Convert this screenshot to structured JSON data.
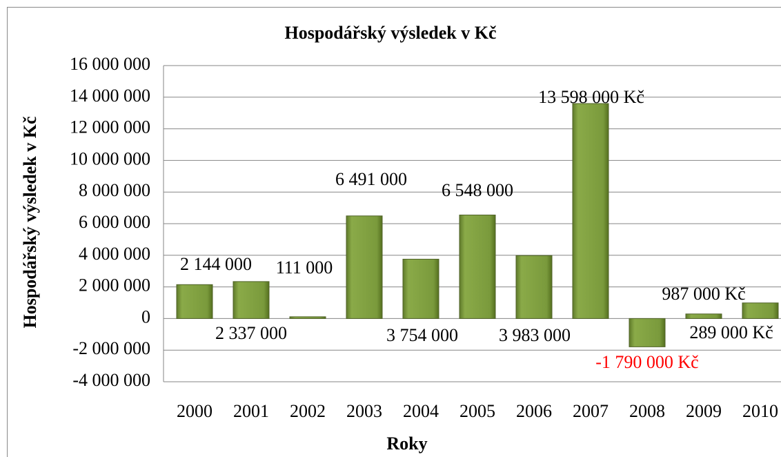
{
  "chart_data": {
    "type": "bar",
    "title": "Hospodářský výsledek v Kč",
    "x_label": "Roky",
    "y_label": "Hospodářský výsledek v Kč",
    "categories": [
      "2000",
      "2001",
      "2002",
      "2003",
      "2004",
      "2005",
      "2006",
      "2007",
      "2008",
      "2009",
      "2010"
    ],
    "values": [
      2144000,
      2337000,
      111000,
      6491000,
      3754000,
      6548000,
      3983000,
      13598000,
      -1790000,
      289000,
      987000
    ],
    "value_labels": [
      "2 144 000",
      "2 337 000",
      "111 000",
      "6 491 000",
      "3 754 000",
      "6 548 000",
      "3 983 000",
      "13 598 000 Kč",
      "-1 790 000 Kč",
      "289 000 Kč",
      "987 000 Kč"
    ],
    "color": "#77933c",
    "value_label_color": "#000000",
    "negative_value_label_color": "#ff0000",
    "ylim": [
      -4000000,
      16000000
    ],
    "yticks": [
      {
        "value": -4000000,
        "label": "-4 000 000"
      },
      {
        "value": -2000000,
        "label": "-2 000 000"
      },
      0,
      {
        "value": 2000000,
        "label": "2 000 000"
      },
      {
        "value": 4000000,
        "label": "4 000 000"
      },
      {
        "value": 6000000,
        "label": "6 000 000"
      },
      {
        "value": 8000000,
        "label": "8 000 000"
      },
      {
        "value": 10000000,
        "label": "10 000 000"
      },
      {
        "value": 12000000,
        "label": "12 000 000"
      },
      {
        "value": 14000000,
        "label": "14 000 000"
      },
      {
        "value": 16000000,
        "label": "16 000 000"
      }
    ],
    "grid": true
  }
}
